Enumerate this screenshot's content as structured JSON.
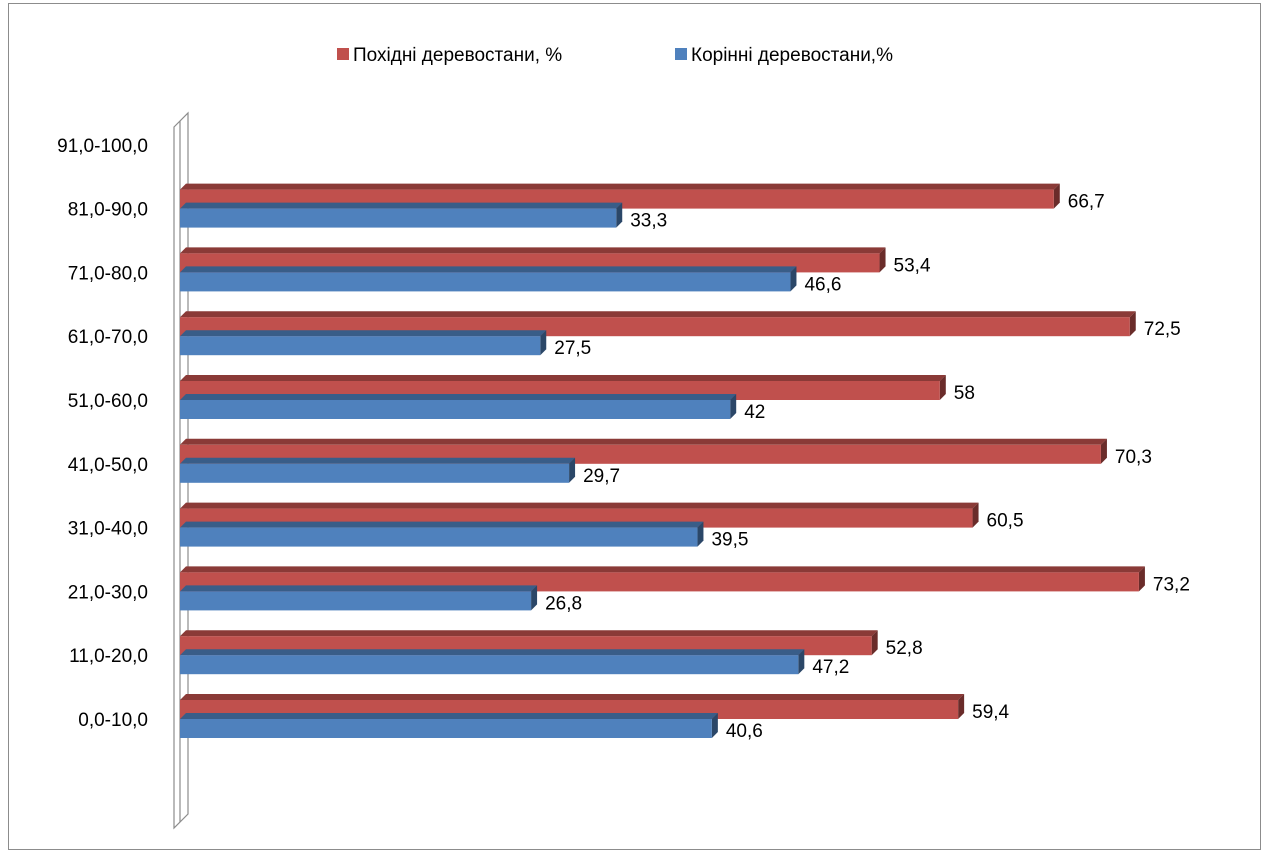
{
  "chart_data": {
    "type": "bar",
    "orientation": "horizontal",
    "style": "3d",
    "categories": [
      "0,0-10,0",
      "11,0-20,0",
      "21,0-30,0",
      "31,0-40,0",
      "41,0-50,0",
      "51,0-60,0",
      "61,0-70,0",
      "71,0-80,0",
      "81,0-90,0",
      "91,0-100,0"
    ],
    "series": [
      {
        "name": "Похідні деревостани, %",
        "color": "#c0504d",
        "values": [
          59.4,
          52.8,
          73.2,
          60.5,
          70.3,
          58,
          72.5,
          53.4,
          66.7,
          null
        ],
        "labels": [
          "59,4",
          "52,8",
          "73,2",
          "60,5",
          "70,3",
          "58",
          "72,5",
          "53,4",
          "66,7",
          ""
        ]
      },
      {
        "name": "Корінні деревостани,%",
        "color": "#4f81bd",
        "values": [
          40.6,
          47.2,
          26.8,
          39.5,
          29.7,
          42,
          27.5,
          46.6,
          33.3,
          null
        ],
        "labels": [
          "40,6",
          "47,2",
          "26,8",
          "39,5",
          "29,7",
          "42",
          "27,5",
          "46,6",
          "33,3",
          ""
        ]
      }
    ],
    "xlim": [
      0,
      80
    ],
    "grid": false,
    "legend_position": "top",
    "title": "",
    "xlabel": "",
    "ylabel": ""
  }
}
